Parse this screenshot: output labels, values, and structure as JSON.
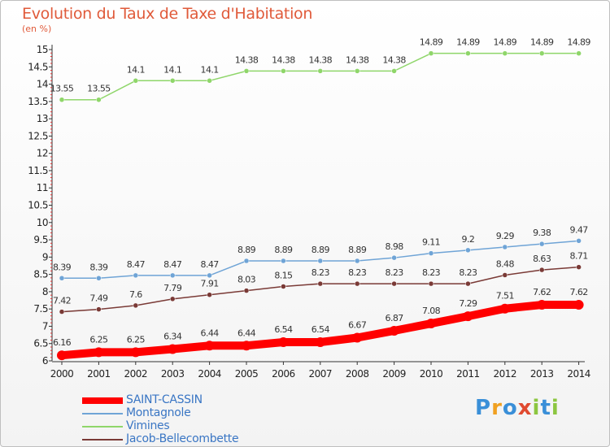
{
  "title": "Evolution du Taux de Taxe d'Habitation",
  "subtitle": "(en %)",
  "logo": "Proxiti",
  "chart_data": {
    "type": "line",
    "x": [
      2000,
      2001,
      2002,
      2003,
      2004,
      2005,
      2006,
      2007,
      2008,
      2009,
      2010,
      2011,
      2012,
      2013,
      2014
    ],
    "yticks": [
      "6",
      "6.5",
      "7",
      "7.5",
      "8",
      "8.5",
      "9",
      "9.5",
      "10",
      "10.5",
      "11",
      "11.5",
      "12",
      "12.5",
      "13",
      "13.5",
      "14",
      "14.5",
      "15"
    ],
    "ylim": [
      6,
      15
    ],
    "xlabel": "",
    "ylabel": "",
    "legend_position": "bottom-left",
    "series": [
      {
        "name": "SAINT-CASSIN",
        "color": "#ff0000",
        "width": 10,
        "values": [
          6.16,
          6.25,
          6.25,
          6.34,
          6.44,
          6.44,
          6.54,
          6.54,
          6.67,
          6.87,
          7.08,
          7.29,
          7.51,
          7.62,
          7.62
        ],
        "labels": [
          "6.16",
          "6.25",
          "6.25",
          "6.34",
          "6.44",
          "6.44",
          "6.54",
          "6.54",
          "6.67",
          "6.87",
          "7.08",
          "7.29",
          "7.51",
          "7.62",
          "7.62"
        ]
      },
      {
        "name": "Montagnole",
        "color": "#6fa4d6",
        "width": 1.5,
        "values": [
          8.39,
          8.39,
          8.47,
          8.47,
          8.47,
          8.89,
          8.89,
          8.89,
          8.89,
          8.98,
          9.11,
          9.2,
          9.29,
          9.38,
          9.47
        ],
        "labels": [
          "8.39",
          "8.39",
          "8.47",
          "8.47",
          "8.47",
          "8.89",
          "8.89",
          "8.89",
          "8.89",
          "8.98",
          "9.11",
          "9.2",
          "9.29",
          "9.38",
          "9.47"
        ]
      },
      {
        "name": "Vimines",
        "color": "#8fd66a",
        "width": 1.5,
        "values": [
          13.55,
          13.55,
          14.1,
          14.1,
          14.1,
          14.38,
          14.38,
          14.38,
          14.38,
          14.38,
          14.89,
          14.89,
          14.89,
          14.89,
          14.89
        ],
        "labels": [
          "13.55",
          "13.55",
          "14.1",
          "14.1",
          "14.1",
          "14.38",
          "14.38",
          "14.38",
          "14.38",
          "14.38",
          "14.89",
          "14.89",
          "14.89",
          "14.89",
          "14.89"
        ]
      },
      {
        "name": "Jacob-Bellecombette",
        "color": "#7a3a36",
        "width": 1.5,
        "values": [
          7.42,
          7.49,
          7.6,
          7.79,
          7.91,
          8.03,
          8.15,
          8.23,
          8.23,
          8.23,
          8.23,
          8.23,
          8.48,
          8.63,
          8.71
        ],
        "labels": [
          "7.42",
          "7.49",
          "7.6",
          "7.79",
          "7.91",
          "8.03",
          "8.15",
          "8.23",
          "8.23",
          "8.23",
          "8.23",
          "8.23",
          "8.48",
          "8.63",
          "8.71"
        ]
      }
    ]
  }
}
